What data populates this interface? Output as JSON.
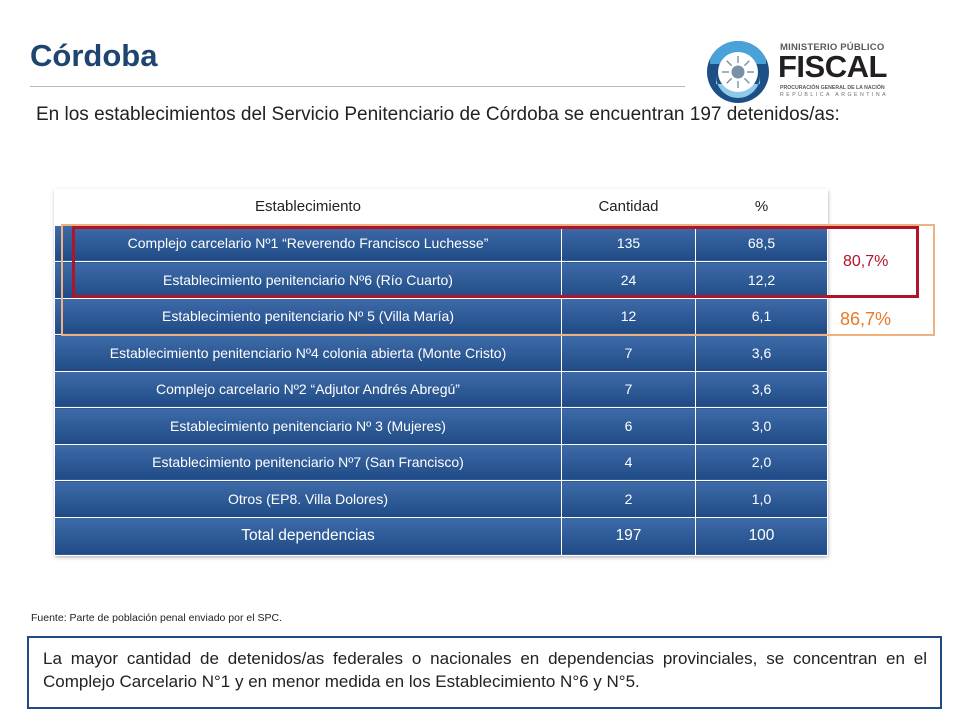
{
  "title": "Córdoba",
  "logo": {
    "ministerio": "MINISTERIO PÚBLICO",
    "fiscal": "FISCAL",
    "procuracion": "PROCURACIÓN GENERAL DE LA NACIÓN",
    "republica": "REPÚBLICA ARGENTINA",
    "emblem_icon": "sun-emblem-icon"
  },
  "intro": "En los establecimientos del Servicio Penitenciario de Córdoba se encuentran 197 detenidos/as:",
  "table": {
    "headers": [
      "Establecimiento",
      "Cantidad",
      "%"
    ],
    "rows": [
      [
        "Complejo carcelario Nº1 “Reverendo Francisco Luchesse”",
        "135",
        "68,5"
      ],
      [
        "Establecimiento penitenciario Nº6  (Río Cuarto)",
        "24",
        "12,2"
      ],
      [
        "Establecimiento penitenciario Nº 5 (Villa María)",
        "12",
        "6,1"
      ],
      [
        "Establecimiento penitenciario Nº4 colonia abierta (Monte Cristo)",
        "7",
        "3,6"
      ],
      [
        "Complejo carcelario Nº2 “Adjutor Andrés Abregú”",
        "7",
        "3,6"
      ],
      [
        "Establecimiento penitenciario Nº 3 (Mujeres)",
        "6",
        "3,0"
      ],
      [
        "Establecimiento penitenciario Nº7  (San Francisco)",
        "4",
        "2,0"
      ],
      [
        "Otros  (EP8. Villa Dolores)",
        "2",
        "1,0"
      ]
    ],
    "total": [
      "Total dependencias",
      "197",
      "100"
    ]
  },
  "annotations": {
    "red_label": "80,7%",
    "orange_label": "86,7%",
    "red_color": "#b0142a",
    "orange_color": "#f0b180"
  },
  "fuente": "Fuente: Parte de población penal enviado por el SPC.",
  "note": "La mayor cantidad de detenidos/as federales o nacionales en dependencias provinciales, se concentran en el Complejo Carcelario N°1 y en menor medida en los Establecimiento N°6 y N°5."
}
